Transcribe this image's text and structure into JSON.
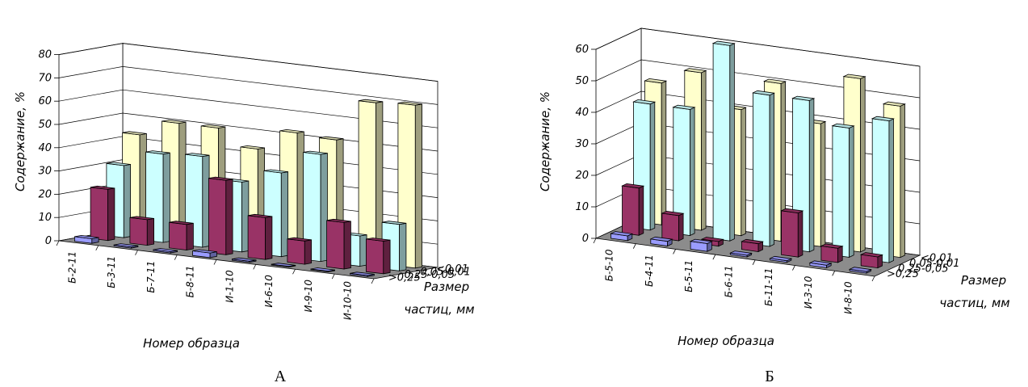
{
  "chart_data": [
    {
      "type": "bar",
      "panel_label": "А",
      "xlabel": "Номер образца",
      "ylabel": "Содержание, %",
      "zlabel": "Размер частиц, мм",
      "ylim": [
        0,
        80
      ],
      "yticks": [
        0,
        10,
        20,
        30,
        40,
        50,
        60,
        70,
        80
      ],
      "grid": true,
      "categories": [
        "Б-2-11",
        "Б-3-11",
        "Б-7-11",
        "Б-8-11",
        "И-1-10",
        "И-6-10",
        "И-9-10",
        "И-10-10"
      ],
      "series": [
        {
          "name": ">0,25",
          "color": "#9a9cff",
          "values": [
            2,
            0.5,
            0.5,
            2,
            0.5,
            0.3,
            0.3,
            0.5
          ]
        },
        {
          "name": "0,25-0,05",
          "color": "#993366",
          "values": [
            22,
            11,
            11,
            32,
            18,
            10,
            20,
            14
          ]
        },
        {
          "name": "0,05-0,01",
          "color": "#ccffff",
          "values": [
            31,
            38,
            39,
            30,
            36,
            46,
            13,
            20
          ]
        },
        {
          "name": "<0,01",
          "color": "#ffffcc",
          "values": [
            43,
            50,
            50,
            43,
            52,
            51,
            69,
            70
          ]
        }
      ]
    },
    {
      "type": "bar",
      "panel_label": "Б",
      "xlabel": "Номер образца",
      "ylabel": "Содержание, %",
      "zlabel": "Размер частиц, мм",
      "ylim": [
        0,
        60
      ],
      "yticks": [
        0,
        10,
        20,
        30,
        40,
        50,
        60
      ],
      "grid": true,
      "categories": [
        "Б-5-10",
        "Б-4-11",
        "Б-5-11",
        "Б-6-11",
        "Б-11-11",
        "И-3-10",
        "И-8-10"
      ],
      "series": [
        {
          "name": ">0,25",
          "color": "#9a9cff",
          "values": [
            1.5,
            1.5,
            2.5,
            0.5,
            0.5,
            0.8,
            0.5
          ]
        },
        {
          "name": "0,25-0,05",
          "color": "#993366",
          "values": [
            15,
            8,
            1.5,
            2.5,
            14,
            4.5,
            3.5
          ]
        },
        {
          "name": "0,05-0,01",
          "color": "#ccffff",
          "values": [
            40,
            40,
            62,
            48,
            48,
            41,
            45
          ]
        },
        {
          "name": "<0,01",
          "color": "#ffffcc",
          "values": [
            45,
            50,
            40,
            50,
            39,
            55,
            48
          ]
        }
      ]
    }
  ]
}
